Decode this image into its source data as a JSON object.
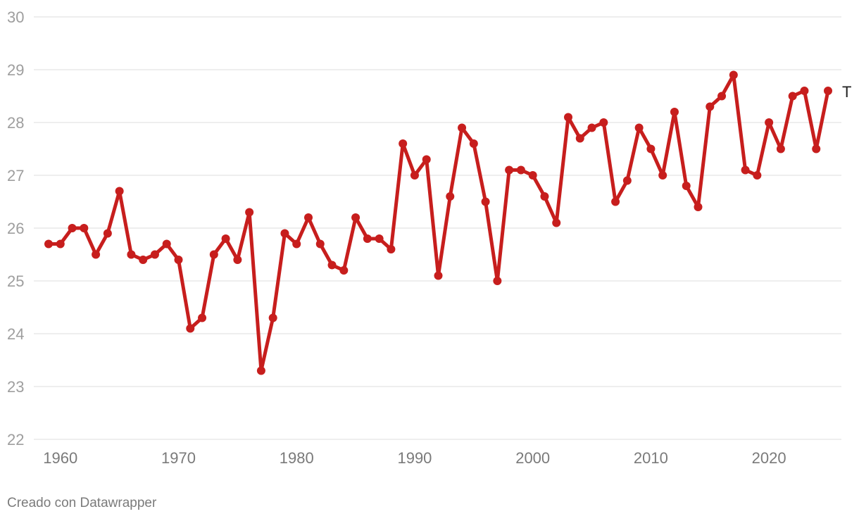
{
  "chart_data": {
    "type": "line",
    "title": "",
    "xlabel": "",
    "ylabel": "",
    "ylim": [
      22,
      30
    ],
    "yticks": [
      "22",
      "23",
      "24",
      "25",
      "26",
      "27",
      "28",
      "29",
      "30"
    ],
    "xlim": [
      1959,
      2025
    ],
    "xticks": [
      "1960",
      "1970",
      "1980",
      "1990",
      "2000",
      "2010",
      "2020"
    ],
    "grid": true,
    "line_color": "#c71e1d",
    "series": [
      {
        "end_label": "T",
        "x": [
          1959,
          1960,
          1961,
          1962,
          1963,
          1964,
          1965,
          1966,
          1967,
          1968,
          1969,
          1970,
          1971,
          1972,
          1973,
          1974,
          1975,
          1976,
          1977,
          1978,
          1979,
          1980,
          1981,
          1982,
          1983,
          1984,
          1985,
          1986,
          1987,
          1988,
          1989,
          1990,
          1991,
          1992,
          1993,
          1994,
          1995,
          1996,
          1997,
          1998,
          1999,
          2000,
          2001,
          2002,
          2003,
          2004,
          2005,
          2006,
          2007,
          2008,
          2009,
          2010,
          2011,
          2012,
          2013,
          2014,
          2015,
          2016,
          2017,
          2018,
          2019,
          2020,
          2021,
          2022,
          2023,
          2024,
          2025
        ],
        "values": [
          25.7,
          25.7,
          26.0,
          26.0,
          25.5,
          25.9,
          26.7,
          25.5,
          25.4,
          25.5,
          25.7,
          25.4,
          24.1,
          24.3,
          25.5,
          25.8,
          25.4,
          26.3,
          23.3,
          24.3,
          25.9,
          25.7,
          26.2,
          25.7,
          25.3,
          25.2,
          26.2,
          25.8,
          25.8,
          25.6,
          27.6,
          27.0,
          27.3,
          25.1,
          26.6,
          27.9,
          27.6,
          26.5,
          25.0,
          27.1,
          27.1,
          27.0,
          26.6,
          26.1,
          28.1,
          27.7,
          27.9,
          28.0,
          26.5,
          26.9,
          27.9,
          27.5,
          27.0,
          28.2,
          26.8,
          26.4,
          28.3,
          28.5,
          28.9,
          27.1,
          27.0,
          28.0,
          27.5,
          28.5,
          28.6,
          27.5,
          28.6
        ]
      }
    ]
  },
  "footer": {
    "credit": "Creado con Datawrapper"
  }
}
